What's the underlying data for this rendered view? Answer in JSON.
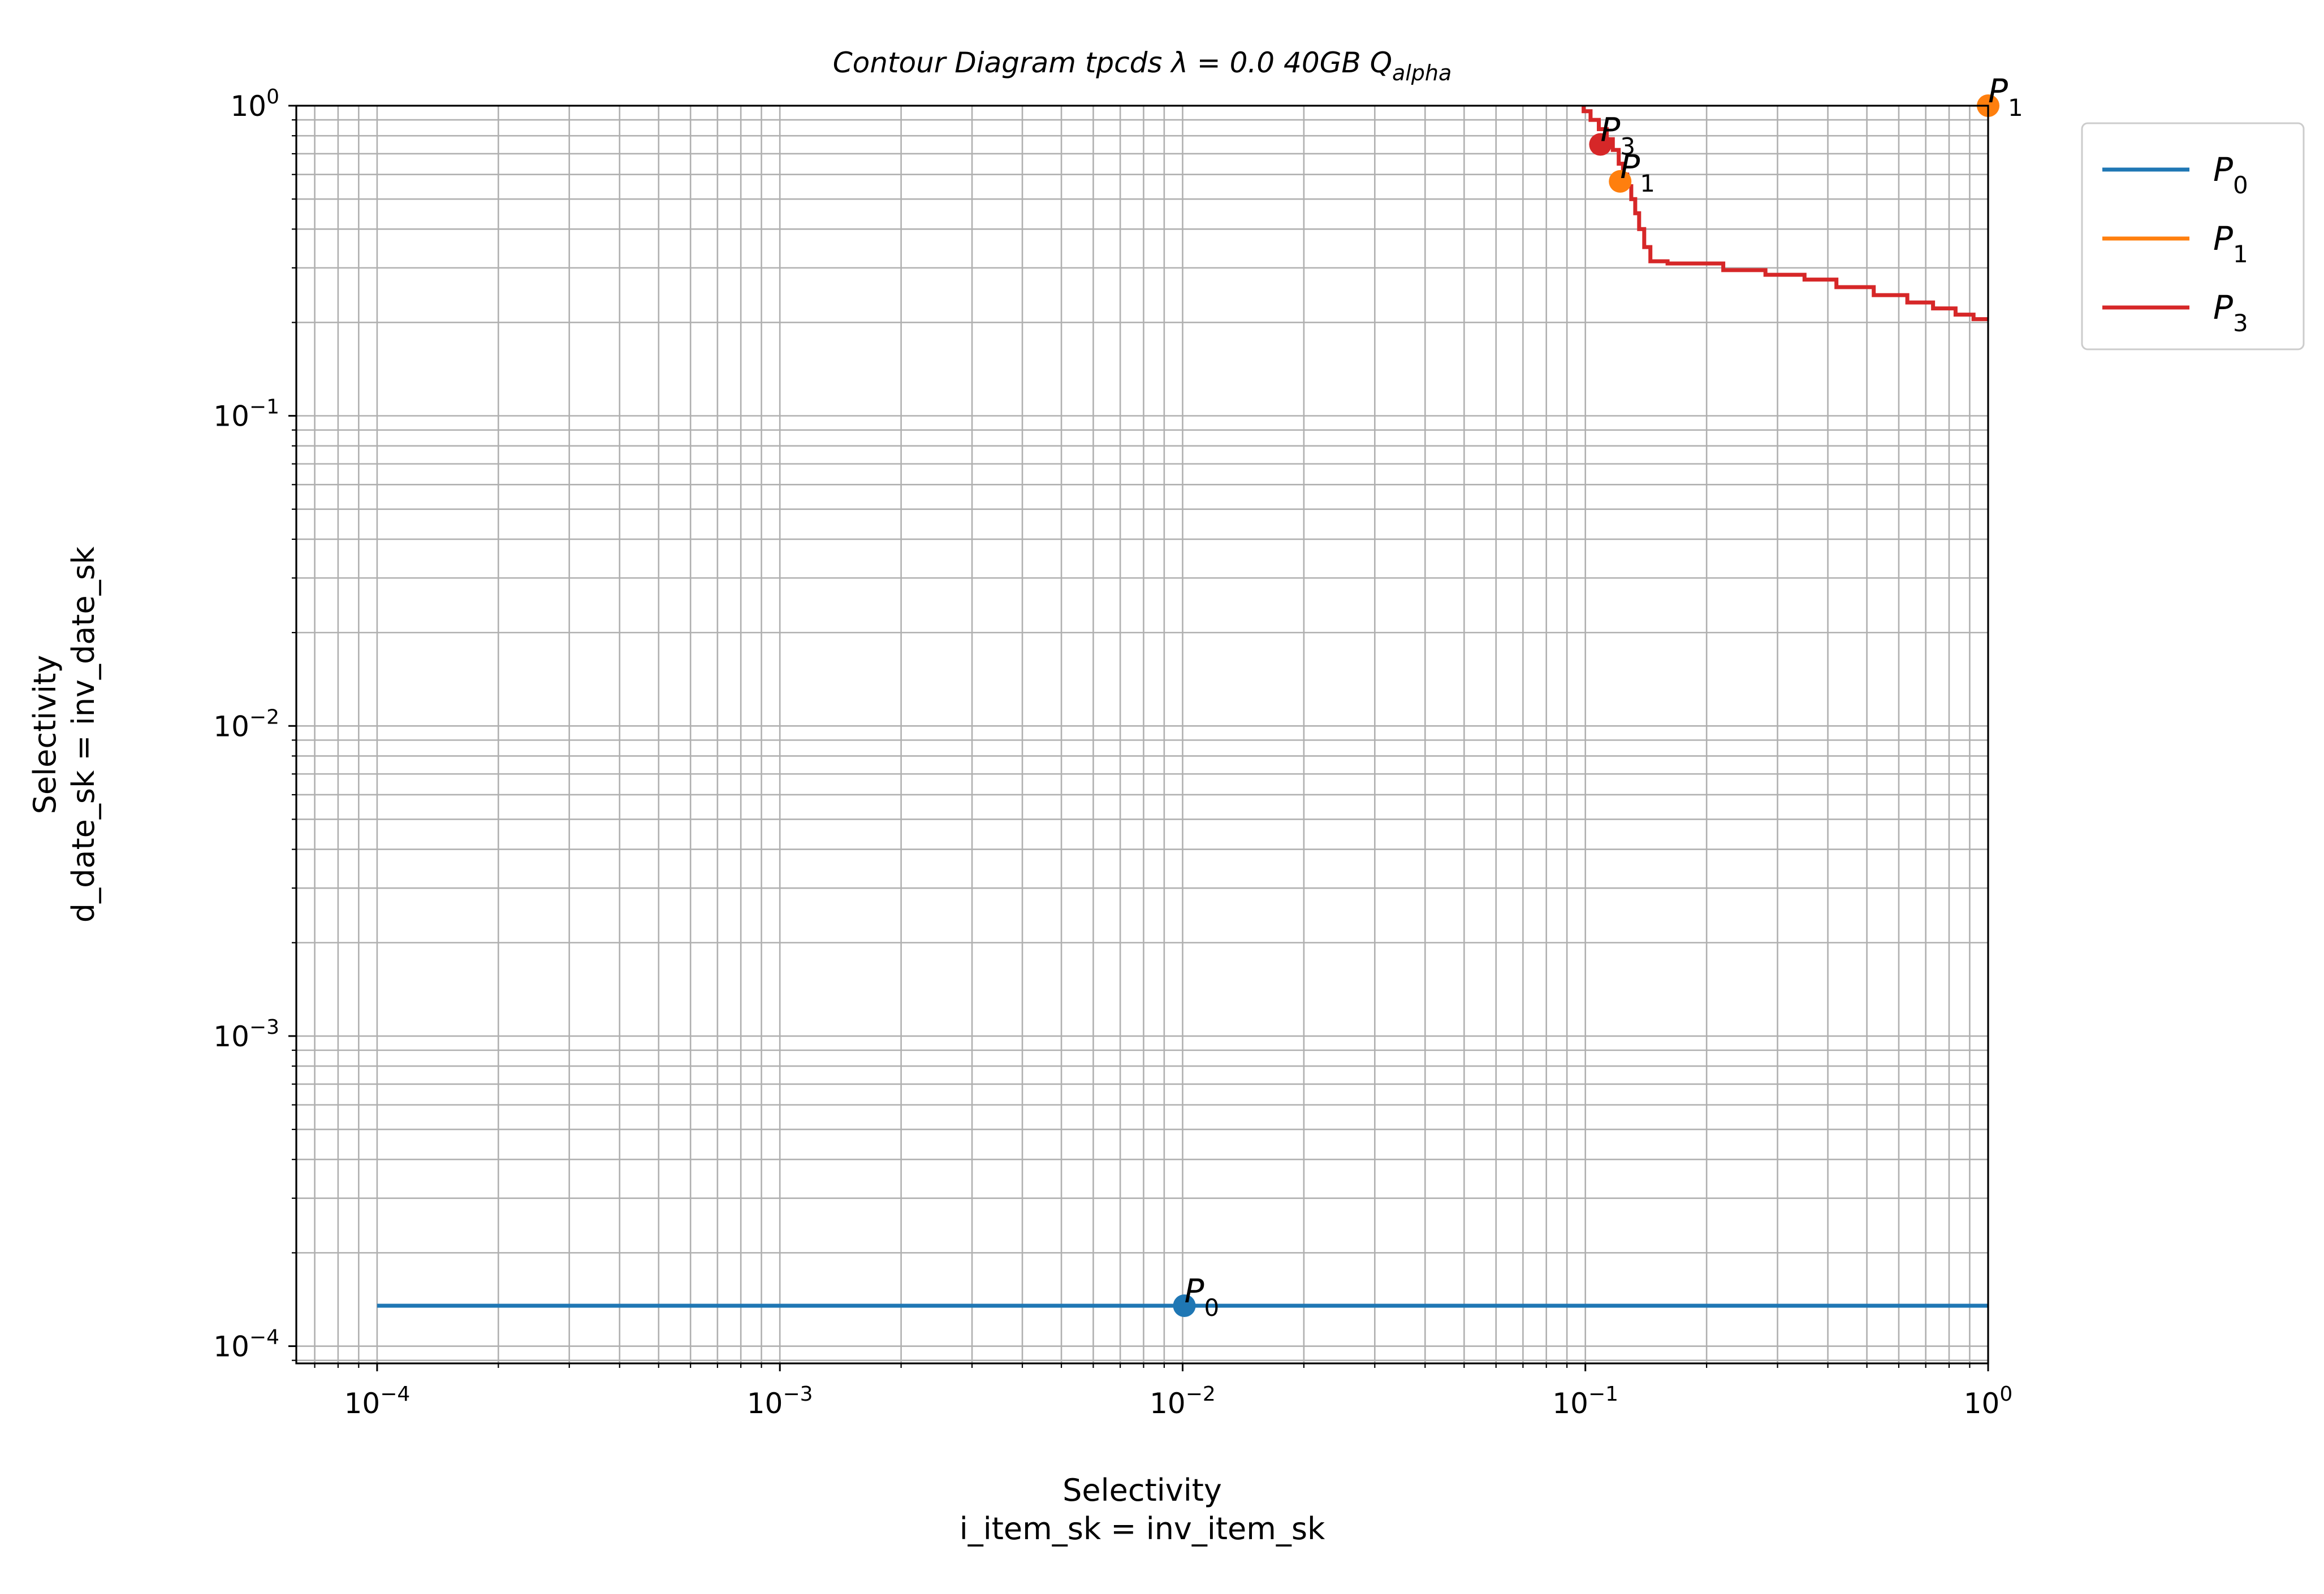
{
  "chart_data": {
    "type": "line",
    "title": "Contour Diagram tpcds λ = 0.0 40GB Q",
    "title_subscript": "alpha",
    "xlabel": [
      "Selectivity",
      "i_item_sk = inv_item_sk"
    ],
    "ylabel": [
      "Selectivity",
      "d_date_sk = inv_date_sk"
    ],
    "xscale": "log",
    "yscale": "log",
    "xlim": [
      6.3e-05,
      1.0
    ],
    "ylim": [
      8.8e-05,
      1.0
    ],
    "x_ticks": [
      {
        "value": 0.0001,
        "base": "10",
        "exp": "−4"
      },
      {
        "value": 0.001,
        "base": "10",
        "exp": "−3"
      },
      {
        "value": 0.01,
        "base": "10",
        "exp": "−2"
      },
      {
        "value": 0.1,
        "base": "10",
        "exp": "−1"
      },
      {
        "value": 1.0,
        "base": "10",
        "exp": "0"
      }
    ],
    "y_ticks": [
      {
        "value": 0.0001,
        "base": "10",
        "exp": "−4"
      },
      {
        "value": 0.001,
        "base": "10",
        "exp": "−3"
      },
      {
        "value": 0.01,
        "base": "10",
        "exp": "−2"
      },
      {
        "value": 0.1,
        "base": "10",
        "exp": "−1"
      },
      {
        "value": 1.0,
        "base": "10",
        "exp": "0"
      }
    ],
    "grid": "major and minor",
    "legend_position": "outside top-right",
    "series": [
      {
        "name": "P",
        "sub": "0",
        "color": "#1f77b4",
        "points": [
          [
            0.0001,
            0.000135
          ],
          [
            1.0,
            0.000135
          ]
        ]
      },
      {
        "name": "P",
        "sub": "1",
        "color": "#ff7f0e",
        "points": []
      },
      {
        "name": "P",
        "sub": "3",
        "color": "#d62728",
        "points": [
          [
            0.099,
            1.0
          ],
          [
            0.099,
            0.96
          ],
          [
            0.103,
            0.96
          ],
          [
            0.103,
            0.9
          ],
          [
            0.108,
            0.9
          ],
          [
            0.108,
            0.84
          ],
          [
            0.113,
            0.84
          ],
          [
            0.113,
            0.78
          ],
          [
            0.117,
            0.78
          ],
          [
            0.117,
            0.72
          ],
          [
            0.121,
            0.72
          ],
          [
            0.121,
            0.65
          ],
          [
            0.124,
            0.65
          ],
          [
            0.124,
            0.6
          ],
          [
            0.127,
            0.6
          ],
          [
            0.127,
            0.55
          ],
          [
            0.13,
            0.55
          ],
          [
            0.13,
            0.5
          ],
          [
            0.133,
            0.5
          ],
          [
            0.133,
            0.45
          ],
          [
            0.136,
            0.45
          ],
          [
            0.136,
            0.4
          ],
          [
            0.14,
            0.4
          ],
          [
            0.14,
            0.35
          ],
          [
            0.145,
            0.35
          ],
          [
            0.145,
            0.315
          ],
          [
            0.16,
            0.315
          ],
          [
            0.16,
            0.31
          ],
          [
            0.22,
            0.31
          ],
          [
            0.22,
            0.295
          ],
          [
            0.28,
            0.295
          ],
          [
            0.28,
            0.285
          ],
          [
            0.35,
            0.285
          ],
          [
            0.35,
            0.275
          ],
          [
            0.42,
            0.275
          ],
          [
            0.42,
            0.26
          ],
          [
            0.52,
            0.26
          ],
          [
            0.52,
            0.245
          ],
          [
            0.63,
            0.245
          ],
          [
            0.63,
            0.232
          ],
          [
            0.73,
            0.232
          ],
          [
            0.73,
            0.222
          ],
          [
            0.83,
            0.222
          ],
          [
            0.83,
            0.212
          ],
          [
            0.92,
            0.212
          ],
          [
            0.92,
            0.205
          ],
          [
            1.0,
            0.205
          ]
        ]
      }
    ],
    "markers": [
      {
        "label": "P",
        "sub": "0",
        "x": 0.0101,
        "y": 0.000135,
        "color": "#1f77b4"
      },
      {
        "label": "P",
        "sub": "1",
        "x": 0.122,
        "y": 0.57,
        "color": "#ff7f0e"
      },
      {
        "label": "P",
        "sub": "1",
        "x": 1.0,
        "y": 1.0,
        "color": "#ff7f0e"
      },
      {
        "label": "P",
        "sub": "3",
        "x": 0.109,
        "y": 0.75,
        "color": "#d62728"
      }
    ]
  }
}
